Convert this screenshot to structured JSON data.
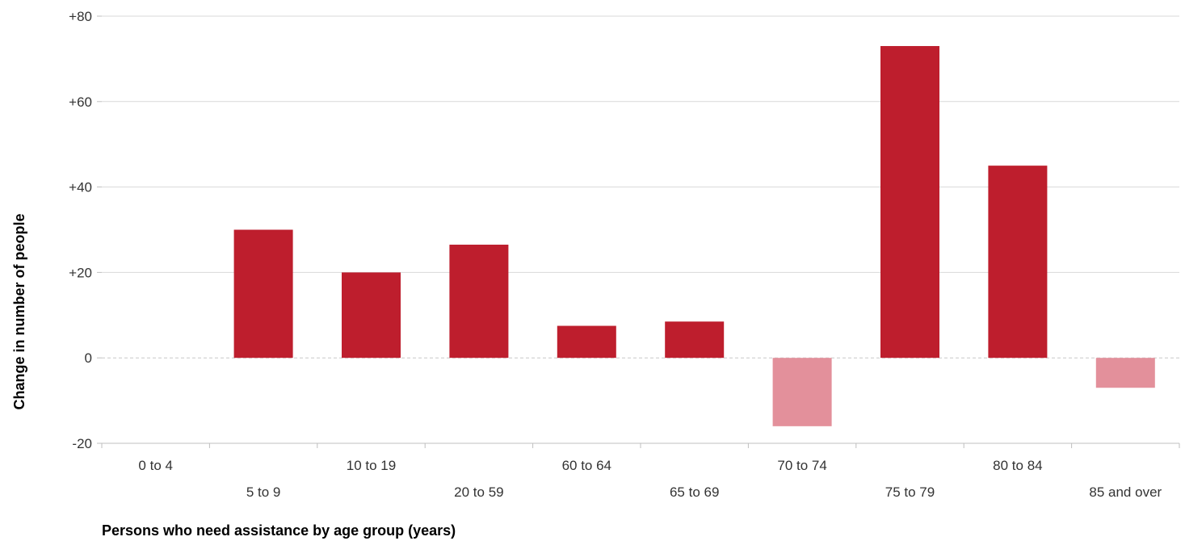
{
  "chart_data": {
    "type": "bar",
    "title": "",
    "xlabel": "Persons who need assistance by age group (years)",
    "ylabel": "Change in number of people",
    "categories": [
      "0 to 4",
      "5 to 9",
      "10 to 19",
      "20 to 59",
      "60 to 64",
      "65 to 69",
      "70 to 74",
      "75 to 79",
      "80 to 84",
      "85 and over"
    ],
    "values": [
      0,
      30,
      20,
      26.5,
      7.5,
      8.5,
      -16,
      73,
      45,
      -7
    ],
    "ylim": [
      -20,
      80
    ],
    "yticks": [
      -20,
      0,
      20,
      40,
      60,
      80
    ],
    "ytick_labels": [
      "-20",
      "0",
      "+20",
      "+40",
      "+60",
      "+80"
    ],
    "grid": true,
    "colors": {
      "positive": "#be1e2d",
      "negative": "#e3909b",
      "grid": "#d9d9d9",
      "zero_line": "#c8c8c8"
    }
  }
}
